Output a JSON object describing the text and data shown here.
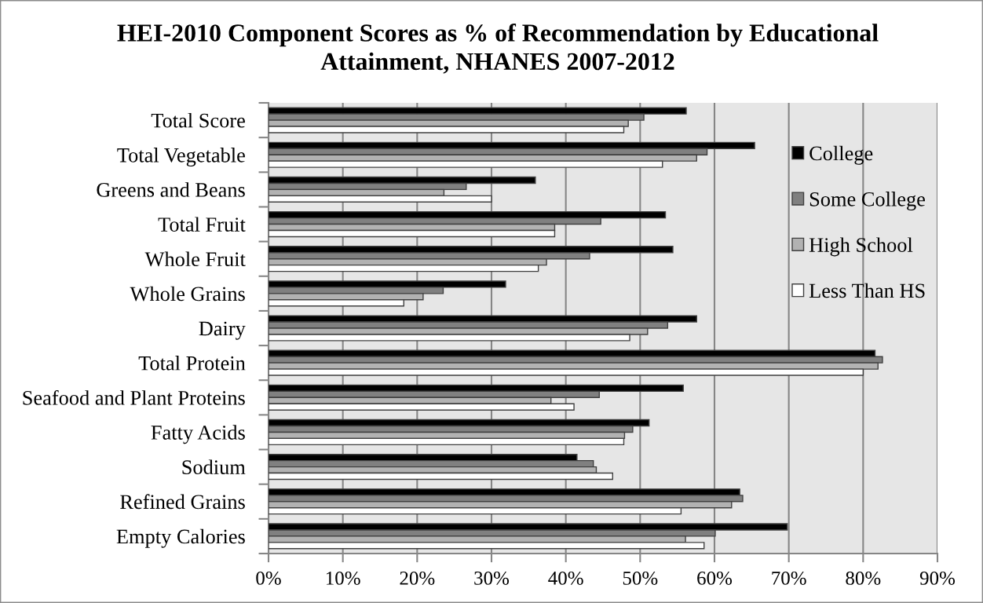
{
  "chart_data": {
    "type": "bar",
    "orientation": "horizontal",
    "title": "HEI-2010 Component Scores as % of Recommendation by Educational Attainment, NHANES 2007-2012",
    "categories": [
      "Total Score",
      "Total Vegetable",
      "Greens and Beans",
      "Total Fruit",
      "Whole Fruit",
      "Whole Grains",
      "Dairy",
      "Total Protein",
      "Seafood and Plant Proteins",
      "Fatty Acids",
      "Sodium",
      "Refined Grains",
      "Empty Calories"
    ],
    "series": [
      {
        "name": "College",
        "color": "#000000",
        "values": [
          56.2,
          65.4,
          35.9,
          53.4,
          54.4,
          31.9,
          57.6,
          81.6,
          55.8,
          51.2,
          41.5,
          63.4,
          69.8
        ]
      },
      {
        "name": "Some College",
        "color": "#808080",
        "values": [
          50.5,
          59.0,
          26.6,
          44.7,
          43.2,
          23.5,
          53.7,
          82.6,
          44.5,
          49.0,
          43.7,
          63.8,
          60.1
        ]
      },
      {
        "name": "High School",
        "color": "#b2b2b2",
        "values": [
          48.4,
          57.6,
          23.6,
          38.5,
          37.4,
          20.8,
          51.0,
          82.0,
          38.0,
          47.9,
          44.1,
          62.3,
          56.1
        ]
      },
      {
        "name": "Less Than HS",
        "color": "#ffffff",
        "values": [
          47.8,
          53.0,
          30.0,
          38.5,
          36.3,
          18.2,
          48.6,
          80.0,
          41.1,
          47.8,
          46.3,
          55.5,
          58.6
        ]
      }
    ],
    "xlim": [
      0,
      90
    ],
    "xticks": [
      {
        "value": 0,
        "label": "0%"
      },
      {
        "value": 10,
        "label": "10%"
      },
      {
        "value": 20,
        "label": "20%"
      },
      {
        "value": 30,
        "label": "30%"
      },
      {
        "value": 40,
        "label": "40%"
      },
      {
        "value": 50,
        "label": "50%"
      },
      {
        "value": 60,
        "label": "60%"
      },
      {
        "value": 70,
        "label": "70%"
      },
      {
        "value": 80,
        "label": "80%"
      },
      {
        "value": 90,
        "label": "90%"
      }
    ],
    "grid": "x",
    "legend": "top right"
  }
}
